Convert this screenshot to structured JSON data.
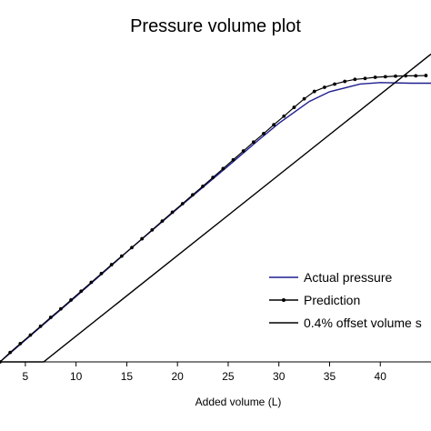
{
  "chart_data": {
    "type": "line",
    "title": "Pressure volume plot",
    "xlabel": "Added volume (L)",
    "ylabel": "",
    "xlim": [
      2.5,
      45
    ],
    "ylim": [
      0,
      100
    ],
    "x_ticks": [
      5,
      10,
      15,
      20,
      25,
      30,
      35,
      40
    ],
    "grid": false,
    "legend_position": "bottom-right",
    "series": [
      {
        "name": "Actual pressure",
        "color": "#1f1f8f",
        "marker": "none",
        "x": [
          2.5,
          5,
          10,
          15,
          20,
          25,
          28,
          30,
          33,
          35,
          38,
          40,
          43,
          45
        ],
        "y": [
          0,
          7.4,
          22.2,
          37.3,
          52.0,
          66.5,
          75.3,
          81.0,
          88.4,
          91.7,
          94.3,
          94.8,
          94.6,
          94.6
        ]
      },
      {
        "name": "Prediction",
        "color": "#000000",
        "marker": "dot",
        "x": [
          2.5,
          3.5,
          4.5,
          5.5,
          6.5,
          7.5,
          8.5,
          9.5,
          10.5,
          11.5,
          12.5,
          13.5,
          14.5,
          15.5,
          16.5,
          17.5,
          18.5,
          19.5,
          20.5,
          21.5,
          22.5,
          23.5,
          24.5,
          25.5,
          26.5,
          27.5,
          28.5,
          29.5,
          30.5,
          31.5,
          32.5,
          33.5,
          34.5,
          35.5,
          36.5,
          37.5,
          38.5,
          39.5,
          40.5,
          41.5,
          42.5,
          43.5,
          44.5
        ],
        "y": [
          0,
          3.2,
          6.2,
          9.1,
          12.1,
          15.1,
          18.0,
          21.0,
          24.0,
          27.0,
          30.0,
          33.0,
          35.9,
          38.8,
          41.8,
          44.8,
          47.8,
          50.8,
          53.7,
          56.7,
          59.6,
          62.6,
          65.6,
          68.6,
          71.6,
          74.6,
          77.5,
          80.5,
          83.4,
          86.4,
          89.3,
          91.8,
          93.2,
          94.3,
          95.2,
          95.9,
          96.2,
          96.6,
          96.8,
          97.0,
          97.1,
          97.1,
          97.2
        ]
      },
      {
        "name": "0.4% offset volume s",
        "color": "#000000",
        "marker": "none",
        "x": [
          2.5,
          6.8,
          45
        ],
        "y": [
          0,
          0,
          104.5
        ]
      }
    ]
  }
}
